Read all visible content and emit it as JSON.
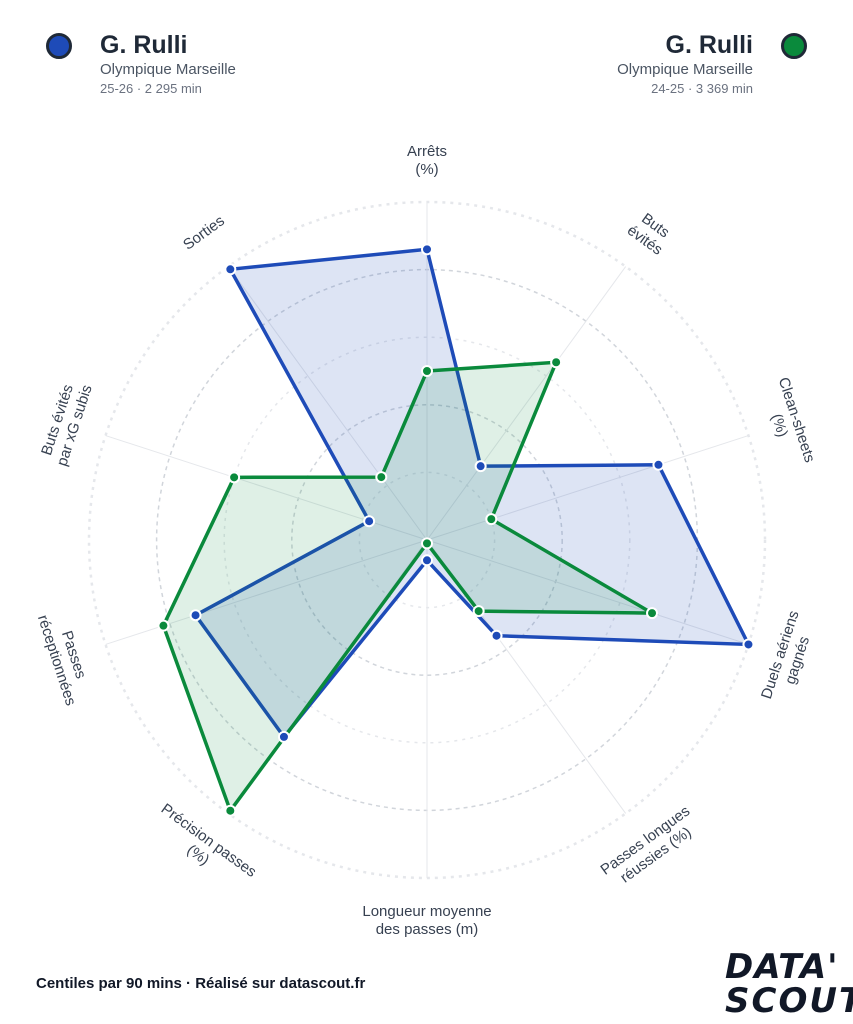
{
  "players": [
    {
      "name": "G. Rulli",
      "club": "Olympique Marseille",
      "meta": "25-26 · 2 295 min",
      "color": "#1e4bb8"
    },
    {
      "name": "G. Rulli",
      "club": "Olympique Marseille",
      "meta": "24-25 · 3 369 min",
      "color": "#0a8a3c"
    }
  ],
  "footer": "Centiles par 90 mins · Réalisé sur datascout.fr",
  "logo": {
    "line1": "DATA'",
    "line2": "SCOUT"
  },
  "chart_data": {
    "type": "radar",
    "categories": [
      "Arrêts\n(%)",
      "Buts\névités",
      "Clean-sheets\n(%)",
      "Duels aériens\ngagnés",
      "Passes longues\nréussies (%)",
      "Longueur moyenne\ndes passes (m)",
      "Précision passes\n(%)",
      "Passes\nréceptionnées",
      "Buts évités\npar xG subis",
      "Sorties"
    ],
    "range": [
      0,
      100
    ],
    "series": [
      {
        "name": "G. Rulli",
        "color": "#1e4bb8",
        "fill": "rgba(30,75,184,0.15)",
        "values": [
          86,
          27,
          72,
          100,
          35,
          6,
          72,
          72,
          18,
          99
        ]
      },
      {
        "name": "G. Rulli",
        "color": "#0a8a3c",
        "fill": "rgba(10,138,60,0.13)",
        "values": [
          50,
          65,
          20,
          70,
          26,
          1,
          99,
          82,
          60,
          23
        ]
      }
    ],
    "grid": true
  }
}
